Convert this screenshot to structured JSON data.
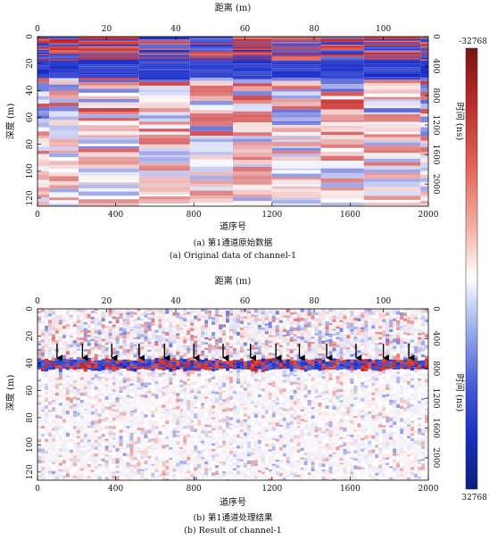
{
  "chart_data": [
    {
      "type": "heatmap",
      "caption_cn": "(a) 第1通道原始数据",
      "caption_en": "(a) Original data of channel-1",
      "xlabel_top": "距离 (m)",
      "xlabel_bottom": "道序号",
      "ylabel_left": "深度 (m)",
      "ylabel_right": "时间 (ns)",
      "xticks_top": [
        0,
        20,
        40,
        60,
        80,
        100
      ],
      "xticks_bottom": [
        0,
        400,
        800,
        1200,
        1600,
        2000
      ],
      "yticks_left": [
        0,
        20,
        40,
        60,
        80,
        100,
        120
      ],
      "yticks_right": [
        0,
        400,
        800,
        1200,
        1600,
        2000
      ],
      "xlim_distance_m": [
        0,
        113
      ],
      "xlim_trace": [
        0,
        2000
      ],
      "ylim_depth_m": [
        0,
        126
      ],
      "ylim_time_ns": [
        0,
        2300
      ],
      "section_boundaries_trace": [
        60,
        210,
        520,
        780,
        1000,
        1200,
        1450,
        1670,
        1960
      ],
      "annotations": []
    },
    {
      "type": "heatmap",
      "caption_cn": "(b) 第1通道处理结果",
      "caption_en": "(b) Result of channel-1",
      "xlabel_top": "距离 (m)",
      "xlabel_bottom": "道序号",
      "ylabel_left": "深度 (m)",
      "ylabel_right": "时间 (ns)",
      "xticks_top": [
        0,
        20,
        40,
        60,
        80,
        100
      ],
      "xticks_bottom": [
        0,
        400,
        800,
        1200,
        1600,
        2000
      ],
      "yticks_left": [
        0,
        20,
        40,
        60,
        80,
        100,
        120
      ],
      "yticks_right": [
        0,
        400,
        800,
        1200,
        1600,
        2000
      ],
      "xlim_distance_m": [
        0,
        113
      ],
      "xlim_trace": [
        0,
        2000
      ],
      "ylim_depth_m": [
        0,
        126
      ],
      "ylim_time_ns": [
        0,
        2300
      ],
      "arrow_positions_trace": [
        100,
        230,
        380,
        520,
        650,
        800,
        950,
        1090,
        1220,
        1340,
        1480,
        1630,
        1770,
        1900
      ],
      "reflector_depth_m": 40
    }
  ],
  "colorbar": {
    "top_label": "-32768",
    "bottom_label": "32768",
    "colors": [
      "#7a1414",
      "#b82a2a",
      "#e46a5a",
      "#f6b8ae",
      "#ffffff",
      "#a9b9ee",
      "#4a5ed8",
      "#1a2fc0",
      "#0a1f7a"
    ]
  }
}
